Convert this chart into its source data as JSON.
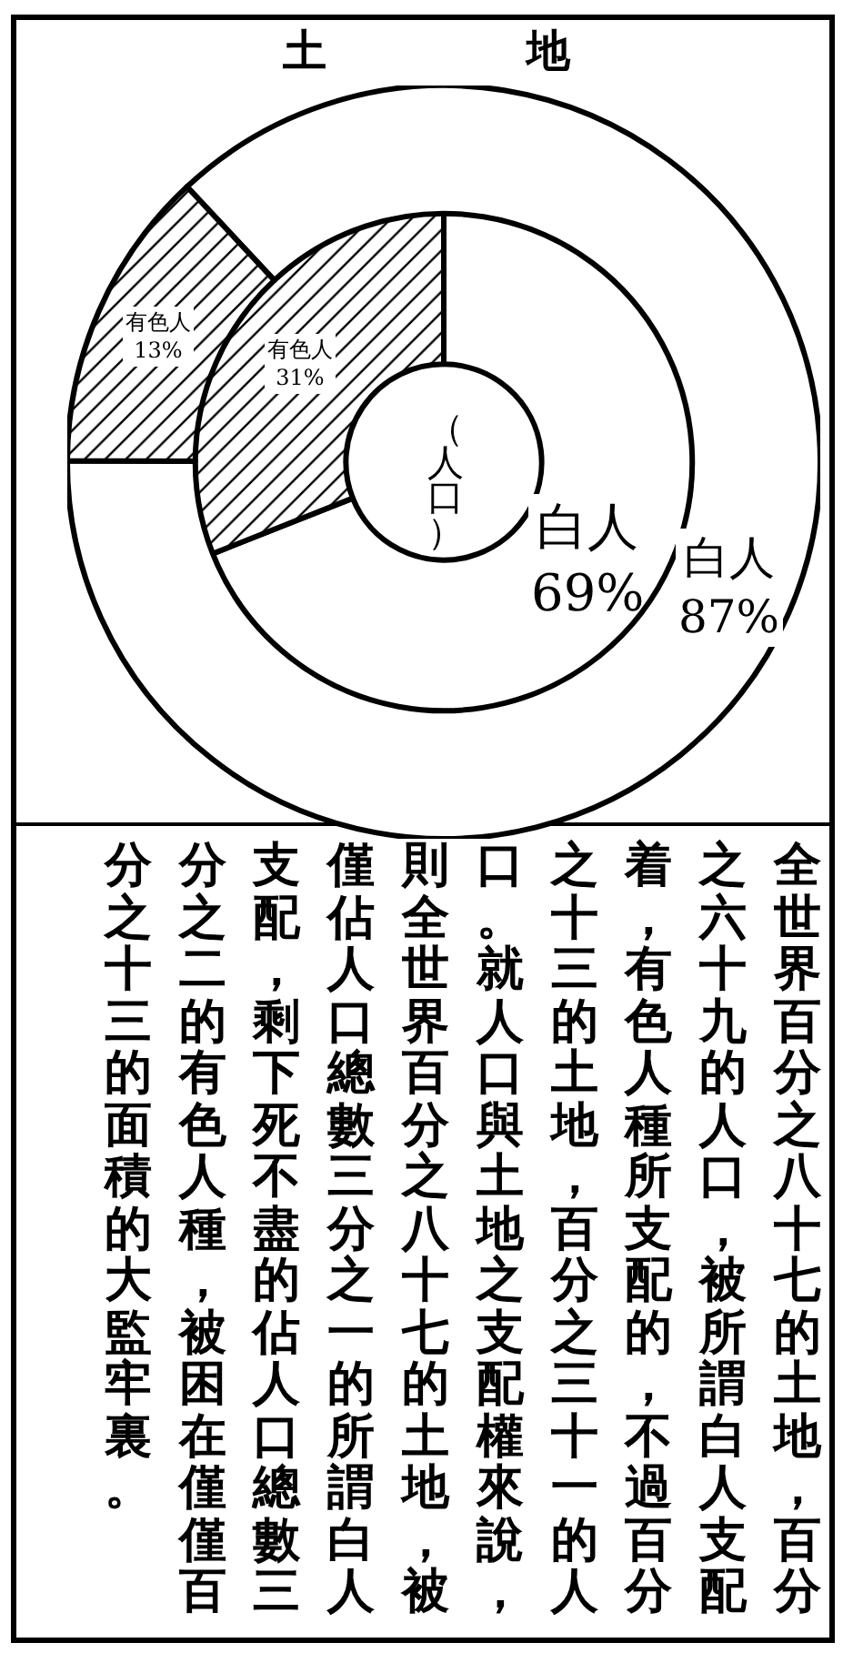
{
  "chart_data": [
    {
      "type": "donut",
      "title": "土地",
      "categories": [
        "白人",
        "有色人"
      ],
      "values": [
        87,
        13
      ],
      "value_labels": [
        "87%",
        "13%"
      ],
      "colors": [
        "#ffffff",
        "#000000"
      ],
      "legend": false,
      "annotations": [
        "全世界百分之八十七的土地，百分之六十九的人口，被所謂白人支配着，有色人種所支配的，不過百分之十三的土地，百分之三十一的人口。就人口與土地之支配權來說，則全世界百分之八十七的土地，被僅佔人口總數三分之一的所謂白人支配，剩下死不盡的佔人口總數三分之二的有色人種，被困在僅僅百分之十三的面積的大監牢裏。"
      ]
    },
    {
      "type": "donut",
      "title": "（人口）",
      "categories": [
        "白人",
        "有色人"
      ],
      "values": [
        69,
        31
      ],
      "value_labels": [
        "69%",
        "31%"
      ],
      "colors": [
        "#ffffff",
        "#000000"
      ],
      "legend": false
    }
  ]
}
